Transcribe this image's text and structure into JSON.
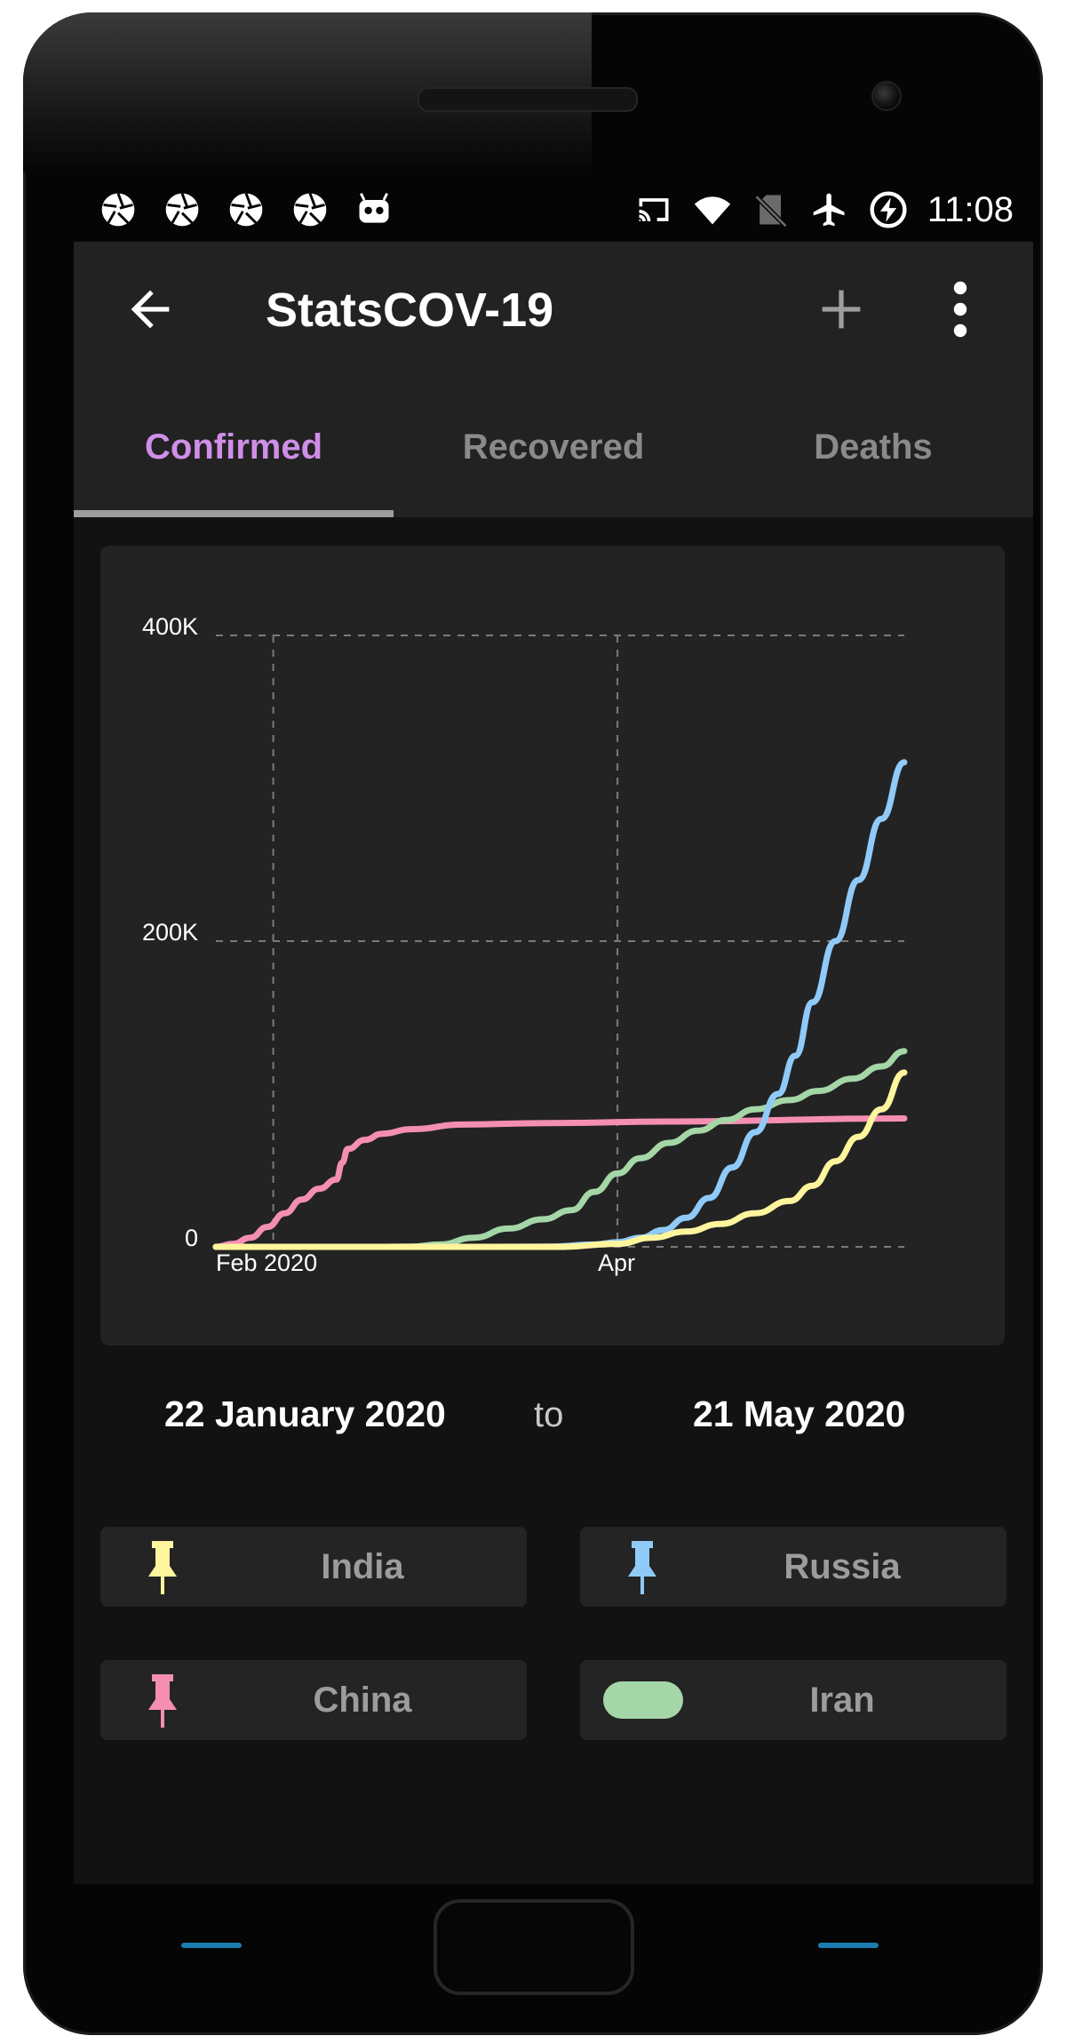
{
  "status_bar": {
    "time": "11:08",
    "left_icons": [
      "aperture-icon",
      "aperture-icon",
      "aperture-icon",
      "aperture-icon",
      "android-robot-icon"
    ],
    "right_icons": [
      "cast-icon",
      "wifi-icon",
      "no-sim-icon",
      "airplane-mode-icon",
      "battery-saver-icon"
    ]
  },
  "app_bar": {
    "title": "StatsCOV-19",
    "back_icon": "arrow-back-icon",
    "add_icon": "plus-icon",
    "menu_icon": "more-vert-icon"
  },
  "tabs": [
    {
      "label": "Confirmed",
      "active": true
    },
    {
      "label": "Recovered",
      "active": false
    },
    {
      "label": "Deaths",
      "active": false
    }
  ],
  "colors": {
    "accent": "#cf8ee8",
    "india": "#fff59d",
    "russia": "#90caf9",
    "china": "#f48fb1",
    "iran": "#a5d6a7"
  },
  "chart_data": {
    "type": "line",
    "x_tick_labels": [
      "Feb 2020",
      "Apr"
    ],
    "y_tick_labels": [
      "0",
      "200K",
      "400K"
    ],
    "ylim": [
      0,
      400000
    ],
    "xlim": [
      "2020-01-22",
      "2020-05-21"
    ],
    "grid": true,
    "series": [
      {
        "name": "China",
        "color": "#f48fb1",
        "points": [
          [
            "2020-01-22",
            0
          ],
          [
            "2020-01-25",
            2000
          ],
          [
            "2020-01-28",
            6000
          ],
          [
            "2020-01-31",
            13000
          ],
          [
            "2020-02-03",
            22000
          ],
          [
            "2020-02-06",
            31000
          ],
          [
            "2020-02-09",
            38000
          ],
          [
            "2020-02-12",
            44000
          ],
          [
            "2020-02-13",
            55000
          ],
          [
            "2020-02-14",
            64000
          ],
          [
            "2020-02-17",
            70000
          ],
          [
            "2020-02-20",
            74000
          ],
          [
            "2020-02-25",
            77000
          ],
          [
            "2020-03-05",
            80000
          ],
          [
            "2020-03-20",
            81000
          ],
          [
            "2020-04-10",
            82000
          ],
          [
            "2020-05-21",
            84000
          ]
        ]
      },
      {
        "name": "Iran",
        "color": "#a5d6a7",
        "points": [
          [
            "2020-01-22",
            0
          ],
          [
            "2020-02-19",
            0
          ],
          [
            "2020-02-25",
            200
          ],
          [
            "2020-03-01",
            1500
          ],
          [
            "2020-03-07",
            6000
          ],
          [
            "2020-03-13",
            12000
          ],
          [
            "2020-03-19",
            18000
          ],
          [
            "2020-03-24",
            24000
          ],
          [
            "2020-03-28",
            36000
          ],
          [
            "2020-04-01",
            48000
          ],
          [
            "2020-04-05",
            58000
          ],
          [
            "2020-04-10",
            68000
          ],
          [
            "2020-04-15",
            76000
          ],
          [
            "2020-04-20",
            83000
          ],
          [
            "2020-04-25",
            90000
          ],
          [
            "2020-05-01",
            96000
          ],
          [
            "2020-05-06",
            102000
          ],
          [
            "2020-05-12",
            110000
          ],
          [
            "2020-05-17",
            118000
          ],
          [
            "2020-05-21",
            128000
          ]
        ]
      },
      {
        "name": "Russia",
        "color": "#90caf9",
        "points": [
          [
            "2020-01-22",
            0
          ],
          [
            "2020-03-10",
            0
          ],
          [
            "2020-03-20",
            200
          ],
          [
            "2020-03-28",
            1500
          ],
          [
            "2020-04-01",
            3000
          ],
          [
            "2020-04-05",
            6000
          ],
          [
            "2020-04-09",
            11000
          ],
          [
            "2020-04-13",
            19000
          ],
          [
            "2020-04-17",
            32000
          ],
          [
            "2020-04-21",
            52000
          ],
          [
            "2020-04-25",
            75000
          ],
          [
            "2020-04-29",
            100000
          ],
          [
            "2020-05-02",
            125000
          ],
          [
            "2020-05-05",
            160000
          ],
          [
            "2020-05-09",
            200000
          ],
          [
            "2020-05-13",
            240000
          ],
          [
            "2020-05-17",
            280000
          ],
          [
            "2020-05-21",
            317000
          ]
        ]
      },
      {
        "name": "India",
        "color": "#fff59d",
        "points": [
          [
            "2020-01-22",
            0
          ],
          [
            "2020-03-22",
            0
          ],
          [
            "2020-04-01",
            2000
          ],
          [
            "2020-04-07",
            6000
          ],
          [
            "2020-04-13",
            10000
          ],
          [
            "2020-04-19",
            15000
          ],
          [
            "2020-04-25",
            22000
          ],
          [
            "2020-05-01",
            30000
          ],
          [
            "2020-05-05",
            40000
          ],
          [
            "2020-05-09",
            56000
          ],
          [
            "2020-05-13",
            72000
          ],
          [
            "2020-05-17",
            90000
          ],
          [
            "2020-05-21",
            114000
          ]
        ]
      }
    ]
  },
  "date_range": {
    "from": "22 January 2020",
    "separator": "to",
    "to": "21 May 2020"
  },
  "countries": [
    {
      "label": "India",
      "marker": "pin-icon",
      "color": "#fff59d"
    },
    {
      "label": "Russia",
      "marker": "pin-icon",
      "color": "#90caf9"
    },
    {
      "label": "China",
      "marker": "pin-icon",
      "color": "#f48fb1"
    },
    {
      "label": "Iran",
      "marker": "toggle-pill-icon",
      "color": "#a5d6a7"
    }
  ]
}
